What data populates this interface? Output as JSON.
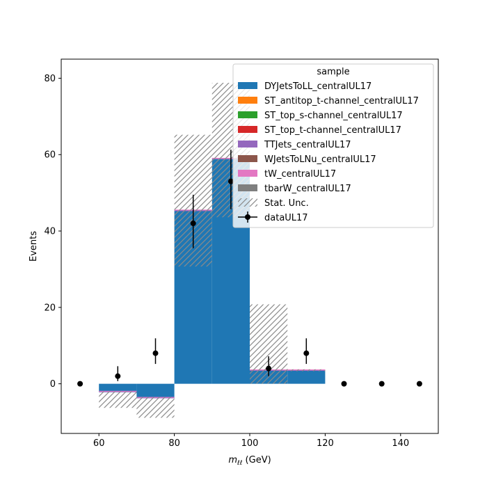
{
  "chart_data": {
    "type": "bar",
    "stacked": true,
    "xlabel_main": "m",
    "xlabel_sub": "ℓℓ",
    "xlabel_unit": " (GeV)",
    "ylabel": "Events",
    "xlim": [
      50,
      150
    ],
    "ylim": [
      -13,
      85
    ],
    "xticks": [
      60,
      80,
      100,
      120,
      140
    ],
    "yticks": [
      0,
      20,
      40,
      60,
      80
    ],
    "bin_edges": [
      60,
      70,
      80,
      90,
      100,
      110,
      120
    ],
    "series": [
      {
        "name": "DYJetsToLL_centralUL17",
        "color": "#1f77b4",
        "values": [
          -2.2,
          -3.8,
          45.2,
          58.8,
          3.4,
          3.4
        ]
      },
      {
        "name": "ST_antitop_t-channel_centralUL17",
        "color": "#ff7f0e",
        "values": [
          0,
          0,
          0,
          0,
          0,
          0
        ]
      },
      {
        "name": "ST_top_s-channel_centralUL17",
        "color": "#2ca02c",
        "values": [
          0,
          0,
          0,
          0,
          0,
          0
        ]
      },
      {
        "name": "ST_top_t-channel_centralUL17",
        "color": "#d62728",
        "values": [
          0,
          0,
          0,
          0,
          0,
          0
        ]
      },
      {
        "name": "TTJets_centralUL17",
        "color": "#9467bd",
        "values": [
          0.25,
          0.25,
          0.3,
          0.25,
          0.25,
          0.25
        ]
      },
      {
        "name": "WJetsToLNu_centralUL17",
        "color": "#8c564b",
        "values": [
          0,
          0,
          0,
          0,
          0,
          0
        ]
      },
      {
        "name": "tW_centralUL17",
        "color": "#e377c2",
        "values": [
          0.1,
          0.1,
          0.1,
          0.1,
          0.1,
          0.1
        ]
      },
      {
        "name": "tbarW_centralUL17",
        "color": "#7f7f7f",
        "values": [
          0,
          0,
          0,
          0,
          0,
          0
        ]
      }
    ],
    "stat_unc": {
      "name": "Stat. Unc.",
      "low": [
        -6.3,
        -8.9,
        30.7,
        43.6,
        0,
        3.3
      ],
      "high": [
        -2.0,
        -3.5,
        65.2,
        78.8,
        20.8,
        3.8
      ]
    },
    "data": {
      "name": "dataUL17",
      "x": [
        55,
        65,
        75,
        85,
        95,
        105,
        115,
        125,
        135,
        145
      ],
      "y": [
        0,
        2,
        8,
        42,
        53,
        4,
        8,
        0,
        0,
        0
      ],
      "yerr_low": [
        0,
        1.3,
        2.8,
        6.5,
        7.3,
        2.0,
        2.8,
        0,
        0,
        0
      ],
      "yerr_high": [
        0,
        2.6,
        3.9,
        7.5,
        8.3,
        3.2,
        3.9,
        0,
        0,
        0
      ]
    },
    "legend": {
      "title": "sample",
      "placement": "top-right"
    }
  }
}
